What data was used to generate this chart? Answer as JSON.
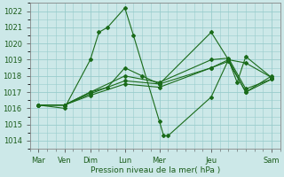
{
  "bg_color": "#cce8e8",
  "grid_color": "#99cccc",
  "line_color": "#1a6b1a",
  "xlabel_text": "Pression niveau de la mer( hPa )",
  "ylim": [
    1013.5,
    1022.5
  ],
  "yticks": [
    1014,
    1015,
    1016,
    1017,
    1018,
    1019,
    1020,
    1021,
    1022
  ],
  "major_xtick_positions": [
    0,
    3,
    6,
    10,
    14,
    20,
    27
  ],
  "major_xtick_labels": [
    "Mar",
    "Ven",
    "Dim",
    "Lun",
    "Mer",
    "Jeu",
    "Sam"
  ],
  "xlim": [
    -1,
    28
  ],
  "lines": [
    {
      "x": [
        0,
        3,
        6,
        7,
        8,
        10,
        11,
        14,
        14.5,
        15,
        20,
        22,
        23,
        24,
        27
      ],
      "y": [
        1016.2,
        1016.0,
        1019.0,
        1020.7,
        1021.0,
        1022.2,
        1020.5,
        1015.2,
        1014.3,
        1014.3,
        1016.7,
        1019.0,
        1017.6,
        1019.2,
        1017.9
      ]
    },
    {
      "x": [
        0,
        3,
        6,
        8,
        10,
        12,
        14,
        20,
        22,
        24,
        27
      ],
      "y": [
        1016.2,
        1016.2,
        1017.0,
        1017.3,
        1018.5,
        1018.0,
        1017.5,
        1020.7,
        1019.0,
        1018.8,
        1017.9
      ]
    },
    {
      "x": [
        0,
        3,
        6,
        10,
        14,
        20,
        22,
        24,
        27
      ],
      "y": [
        1016.2,
        1016.2,
        1016.9,
        1017.7,
        1017.5,
        1018.5,
        1019.0,
        1017.0,
        1018.0
      ]
    },
    {
      "x": [
        0,
        3,
        6,
        10,
        14,
        20,
        22,
        24,
        27
      ],
      "y": [
        1016.2,
        1016.2,
        1017.0,
        1018.0,
        1017.6,
        1019.0,
        1019.1,
        1017.2,
        1017.8
      ]
    },
    {
      "x": [
        0,
        3,
        6,
        10,
        14,
        20,
        22,
        24,
        27
      ],
      "y": [
        1016.2,
        1016.2,
        1016.8,
        1017.5,
        1017.3,
        1018.5,
        1018.9,
        1017.0,
        1017.8
      ]
    }
  ]
}
